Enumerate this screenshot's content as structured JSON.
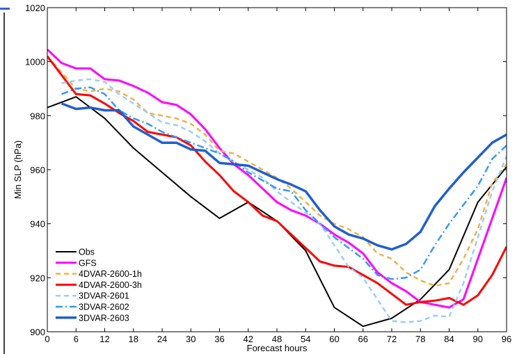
{
  "chart_data": {
    "type": "line",
    "xlabel": "Forecast hours",
    "ylabel": "Min SLP (hPa)",
    "xlim": [
      0,
      96
    ],
    "ylim": [
      900,
      1020
    ],
    "xticks": [
      0,
      6,
      12,
      18,
      24,
      30,
      36,
      42,
      48,
      54,
      60,
      66,
      72,
      78,
      84,
      90,
      96
    ],
    "yticks": [
      900,
      920,
      940,
      960,
      980,
      1000,
      1020
    ],
    "legend_position": "bottom-left",
    "grid": false,
    "series": [
      {
        "name": "Obs",
        "color": "#000000",
        "dash": "solid",
        "width": 2,
        "points": [
          [
            0,
            983
          ],
          [
            6,
            987
          ],
          [
            12,
            979
          ],
          [
            18,
            968
          ],
          [
            24,
            959
          ],
          [
            30,
            950
          ],
          [
            36,
            942
          ],
          [
            42,
            948
          ],
          [
            48,
            941
          ],
          [
            54,
            930
          ],
          [
            60,
            909
          ],
          [
            66,
            902
          ],
          [
            72,
            905
          ],
          [
            78,
            912
          ],
          [
            84,
            923
          ],
          [
            90,
            948
          ],
          [
            96,
            961
          ]
        ]
      },
      {
        "name": "GFS",
        "color": "#ff00ff",
        "dash": "solid",
        "width": 3,
        "points": [
          [
            0,
            1004.5
          ],
          [
            3,
            999.5
          ],
          [
            6,
            997.5
          ],
          [
            9,
            997.5
          ],
          [
            12,
            993.5
          ],
          [
            15,
            993
          ],
          [
            18,
            991
          ],
          [
            21,
            988.5
          ],
          [
            24,
            985
          ],
          [
            27,
            984
          ],
          [
            30,
            980.5
          ],
          [
            33,
            975
          ],
          [
            36,
            968
          ],
          [
            39,
            962
          ],
          [
            42,
            958
          ],
          [
            45,
            953
          ],
          [
            48,
            948
          ],
          [
            51,
            945
          ],
          [
            54,
            943
          ],
          [
            57,
            940
          ],
          [
            60,
            936
          ],
          [
            63,
            933
          ],
          [
            66,
            929
          ],
          [
            69,
            922
          ],
          [
            72,
            918
          ],
          [
            75,
            915
          ],
          [
            78,
            911
          ],
          [
            81,
            910
          ],
          [
            84,
            909
          ],
          [
            87,
            912
          ],
          [
            90,
            927
          ],
          [
            93,
            942
          ],
          [
            96,
            957
          ]
        ]
      },
      {
        "name": "4DVAR-2600-1h",
        "color": "#f5b041",
        "dash": "7,5",
        "width": 2.5,
        "points": [
          [
            0,
            1002
          ],
          [
            3,
            996
          ],
          [
            6,
            990
          ],
          [
            9,
            989
          ],
          [
            12,
            990
          ],
          [
            15,
            989
          ],
          [
            18,
            986
          ],
          [
            21,
            981
          ],
          [
            24,
            980
          ],
          [
            27,
            979
          ],
          [
            30,
            977
          ],
          [
            33,
            973
          ],
          [
            36,
            967
          ],
          [
            39,
            966
          ],
          [
            42,
            963
          ],
          [
            45,
            960
          ],
          [
            48,
            957
          ],
          [
            51,
            953
          ],
          [
            54,
            948
          ],
          [
            57,
            943
          ],
          [
            60,
            940
          ],
          [
            63,
            938
          ],
          [
            66,
            935
          ],
          [
            69,
            929
          ],
          [
            72,
            927
          ],
          [
            75,
            922
          ],
          [
            78,
            919
          ],
          [
            81,
            917
          ],
          [
            84,
            918
          ],
          [
            87,
            927
          ],
          [
            90,
            938
          ],
          [
            93,
            955
          ],
          [
            96,
            962
          ]
        ]
      },
      {
        "name": "4DVAR-2600-3h",
        "color": "#ff0000",
        "dash": "solid",
        "width": 3,
        "points": [
          [
            0,
            1002
          ],
          [
            3,
            995
          ],
          [
            6,
            988
          ],
          [
            9,
            987.5
          ],
          [
            12,
            984.5
          ],
          [
            15,
            981
          ],
          [
            18,
            978
          ],
          [
            21,
            974
          ],
          [
            24,
            973
          ],
          [
            27,
            972
          ],
          [
            30,
            969
          ],
          [
            33,
            963
          ],
          [
            36,
            958
          ],
          [
            39,
            952
          ],
          [
            42,
            948
          ],
          [
            45,
            943
          ],
          [
            48,
            941
          ],
          [
            51,
            936
          ],
          [
            54,
            931
          ],
          [
            57,
            926
          ],
          [
            60,
            924.5
          ],
          [
            63,
            924
          ],
          [
            66,
            921
          ],
          [
            69,
            918
          ],
          [
            72,
            914
          ],
          [
            75,
            910
          ],
          [
            78,
            911
          ],
          [
            81,
            911.5
          ],
          [
            84,
            912.5
          ],
          [
            87,
            910
          ],
          [
            90,
            913.5
          ],
          [
            93,
            921
          ],
          [
            96,
            931.5
          ]
        ]
      },
      {
        "name": "3DVAR-2601",
        "color": "#99ccff",
        "dash": "7,5",
        "width": 2.5,
        "points": [
          [
            3,
            992
          ],
          [
            6,
            993
          ],
          [
            9,
            993.5
          ],
          [
            12,
            992.5
          ],
          [
            15,
            988
          ],
          [
            18,
            984.5
          ],
          [
            21,
            981
          ],
          [
            24,
            977.5
          ],
          [
            27,
            976.5
          ],
          [
            30,
            974
          ],
          [
            33,
            970.5
          ],
          [
            36,
            966
          ],
          [
            39,
            963
          ],
          [
            42,
            960
          ],
          [
            45,
            957
          ],
          [
            48,
            952
          ],
          [
            51,
            948
          ],
          [
            54,
            944
          ],
          [
            57,
            940
          ],
          [
            60,
            932
          ],
          [
            63,
            924
          ],
          [
            66,
            920
          ],
          [
            69,
            912
          ],
          [
            72,
            904
          ],
          [
            75,
            903.5
          ],
          [
            78,
            904
          ],
          [
            81,
            906
          ],
          [
            84,
            905.5
          ],
          [
            87,
            918
          ],
          [
            90,
            935
          ],
          [
            93,
            952
          ],
          [
            96,
            965
          ]
        ]
      },
      {
        "name": "3DVAR-2602",
        "color": "#3399ff",
        "dash": "10,4,2,4",
        "width": 2.5,
        "points": [
          [
            3,
            988
          ],
          [
            6,
            990
          ],
          [
            9,
            990.5
          ],
          [
            12,
            988
          ],
          [
            15,
            982
          ],
          [
            18,
            979
          ],
          [
            21,
            977
          ],
          [
            24,
            974
          ],
          [
            27,
            972
          ],
          [
            30,
            970
          ],
          [
            33,
            968
          ],
          [
            36,
            966
          ],
          [
            39,
            963
          ],
          [
            42,
            959
          ],
          [
            45,
            956
          ],
          [
            48,
            953
          ],
          [
            51,
            952
          ],
          [
            54,
            945
          ],
          [
            57,
            940
          ],
          [
            60,
            935
          ],
          [
            63,
            931
          ],
          [
            66,
            927
          ],
          [
            69,
            921
          ],
          [
            72,
            919.5
          ],
          [
            75,
            920
          ],
          [
            78,
            923
          ],
          [
            81,
            932
          ],
          [
            84,
            940
          ],
          [
            87,
            947
          ],
          [
            90,
            954
          ],
          [
            93,
            964
          ],
          [
            96,
            969
          ]
        ]
      },
      {
        "name": "3DVAR-2603",
        "color": "#1f5fd1",
        "dash": "solid",
        "width": 3.5,
        "points": [
          [
            3,
            984.5
          ],
          [
            6,
            982.5
          ],
          [
            9,
            983
          ],
          [
            12,
            982
          ],
          [
            15,
            982
          ],
          [
            18,
            976
          ],
          [
            21,
            973
          ],
          [
            24,
            970
          ],
          [
            27,
            970
          ],
          [
            30,
            967.5
          ],
          [
            33,
            967
          ],
          [
            36,
            962.5
          ],
          [
            39,
            962
          ],
          [
            42,
            961.5
          ],
          [
            45,
            959
          ],
          [
            48,
            956.5
          ],
          [
            51,
            954.5
          ],
          [
            54,
            952
          ],
          [
            57,
            945
          ],
          [
            60,
            939
          ],
          [
            63,
            936
          ],
          [
            66,
            934.5
          ],
          [
            69,
            932
          ],
          [
            72,
            930.5
          ],
          [
            75,
            932.5
          ],
          [
            78,
            937
          ],
          [
            81,
            946.5
          ],
          [
            84,
            953
          ],
          [
            87,
            959
          ],
          [
            90,
            964.5
          ],
          [
            93,
            970
          ],
          [
            96,
            973
          ]
        ]
      }
    ]
  }
}
